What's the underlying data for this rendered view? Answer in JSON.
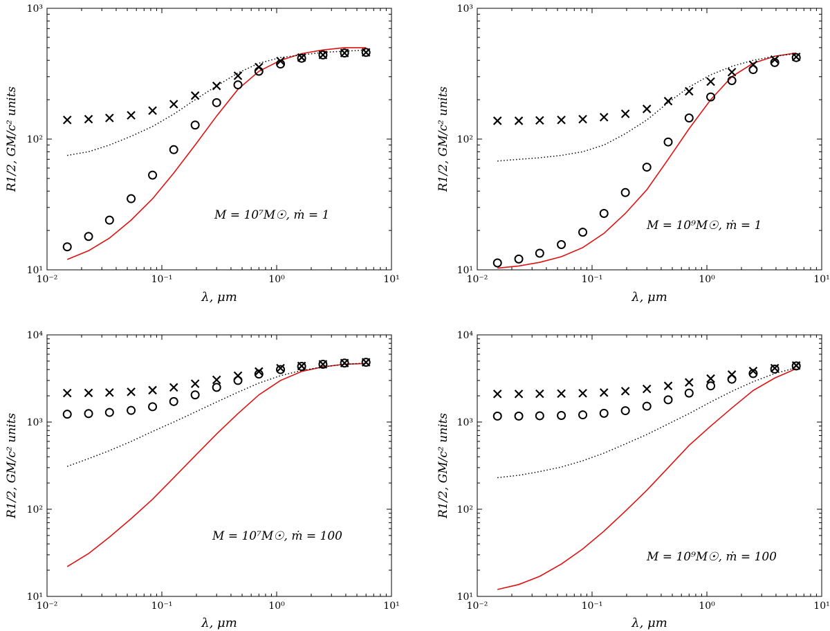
{
  "figure": {
    "colors": {
      "model_solid": "#e01010",
      "model_dotted": "#000000",
      "marker_cross": "#000000",
      "marker_circle": "#000000"
    },
    "panel_label_texts": {
      "xlabel": "λ, μm",
      "ylabel": "R1/2, GM/c² units",
      "annot_7_1": "M = 10⁷M☉, ṁ = 1",
      "annot_9_1": "M = 10⁹M☉, ṁ = 1",
      "annot_7_100": "M = 10⁷M☉, ṁ = 100",
      "annot_9_100": "M = 10⁹M☉, ṁ = 100"
    }
  },
  "chart_data": [
    {
      "type": "line",
      "annotation": "M = 10⁷M☉, ṁ = 1",
      "xlabel": "λ, μm",
      "ylabel": "R1/2, GM/c² units",
      "xscale": "log",
      "yscale": "log",
      "xlim": [
        0.01,
        10
      ],
      "ylim": [
        10,
        1000
      ],
      "xticks": [
        "10⁻²",
        "10⁻¹",
        "10⁰",
        "10¹"
      ],
      "yticks": [
        "10¹",
        "10²",
        "10³"
      ],
      "x": [
        0.015,
        0.023,
        0.035,
        0.054,
        0.083,
        0.127,
        0.195,
        0.3,
        0.46,
        0.7,
        1.08,
        1.65,
        2.53,
        3.9,
        6.0
      ],
      "series": [
        {
          "style": "solid-red",
          "values": [
            12,
            14,
            17.5,
            24,
            35,
            55,
            90,
            150,
            240,
            330,
            400,
            450,
            480,
            500,
            500
          ]
        },
        {
          "style": "dotted-black",
          "values": [
            75,
            80,
            90,
            105,
            125,
            155,
            200,
            255,
            320,
            380,
            420,
            440,
            460,
            470,
            480
          ]
        },
        {
          "style": "cross-marker",
          "values": [
            140,
            142,
            145,
            152,
            165,
            185,
            215,
            255,
            305,
            355,
            395,
            420,
            440,
            455,
            460
          ]
        },
        {
          "style": "circle-marker",
          "values": [
            15,
            18,
            24,
            35,
            53,
            83,
            128,
            190,
            260,
            330,
            375,
            415,
            440,
            455,
            460
          ]
        }
      ]
    },
    {
      "type": "line",
      "annotation": "M = 10⁹M☉, ṁ = 1",
      "xlabel": "λ, μm",
      "ylabel": "R1/2, GM/c² units",
      "xscale": "log",
      "yscale": "log",
      "xlim": [
        0.01,
        10
      ],
      "ylim": [
        10,
        1000
      ],
      "xticks": [
        "10⁻²",
        "10⁻¹",
        "10⁰",
        "10¹"
      ],
      "yticks": [
        "10¹",
        "10²",
        "10³"
      ],
      "x": [
        0.015,
        0.023,
        0.035,
        0.054,
        0.083,
        0.127,
        0.195,
        0.3,
        0.46,
        0.7,
        1.08,
        1.65,
        2.53,
        3.9,
        6.0
      ],
      "series": [
        {
          "style": "solid-red",
          "values": [
            10.3,
            10.7,
            11.4,
            12.6,
            14.8,
            19,
            27,
            41,
            70,
            120,
            200,
            300,
            380,
            430,
            455
          ]
        },
        {
          "style": "dotted-black",
          "values": [
            68,
            70,
            72,
            75,
            80,
            90,
            110,
            140,
            190,
            250,
            310,
            360,
            400,
            430,
            450
          ]
        },
        {
          "style": "cross-marker",
          "values": [
            138,
            138,
            139,
            140,
            142,
            147,
            156,
            170,
            195,
            232,
            275,
            325,
            370,
            405,
            425
          ]
        },
        {
          "style": "circle-marker",
          "values": [
            11.3,
            12.1,
            13.4,
            15.6,
            19.4,
            27,
            39,
            61,
            95,
            145,
            210,
            280,
            340,
            385,
            420
          ]
        }
      ]
    },
    {
      "type": "line",
      "annotation": "M = 10⁷M☉, ṁ = 100",
      "xlabel": "λ, μm",
      "ylabel": "R1/2, GM/c² units",
      "xscale": "log",
      "yscale": "log",
      "xlim": [
        0.01,
        10
      ],
      "ylim": [
        10,
        10000
      ],
      "xticks": [
        "10⁻²",
        "10⁻¹",
        "10⁰",
        "10¹"
      ],
      "yticks": [
        "10¹",
        "10²",
        "10³",
        "10⁴"
      ],
      "x": [
        0.015,
        0.023,
        0.035,
        0.054,
        0.083,
        0.127,
        0.195,
        0.3,
        0.46,
        0.7,
        1.08,
        1.65,
        2.53,
        3.9,
        6.0
      ],
      "series": [
        {
          "style": "solid-red",
          "values": [
            22,
            31,
            48,
            78,
            130,
            230,
            410,
            730,
            1250,
            2050,
            3000,
            3800,
            4300,
            4600,
            4700
          ]
        },
        {
          "style": "dotted-black",
          "values": [
            310,
            380,
            470,
            600,
            780,
            1000,
            1300,
            1700,
            2200,
            2800,
            3400,
            3900,
            4300,
            4600,
            4750
          ]
        },
        {
          "style": "cross-marker",
          "values": [
            2150,
            2160,
            2180,
            2220,
            2320,
            2500,
            2750,
            3050,
            3400,
            3800,
            4150,
            4400,
            4600,
            4750,
            4850
          ]
        },
        {
          "style": "circle-marker",
          "values": [
            1230,
            1250,
            1290,
            1360,
            1500,
            1720,
            2050,
            2500,
            3000,
            3550,
            4000,
            4350,
            4600,
            4750,
            4850
          ]
        }
      ]
    },
    {
      "type": "line",
      "annotation": "M = 10⁹M☉, ṁ = 100",
      "xlabel": "λ, μm",
      "ylabel": "R1/2, GM/c² units",
      "xscale": "log",
      "yscale": "log",
      "xlim": [
        0.01,
        10
      ],
      "ylim": [
        10,
        10000
      ],
      "xticks": [
        "10⁻²",
        "10⁻¹",
        "10⁰",
        "10¹"
      ],
      "yticks": [
        "10¹",
        "10²",
        "10³",
        "10⁴"
      ],
      "x": [
        0.015,
        0.023,
        0.035,
        0.054,
        0.083,
        0.127,
        0.195,
        0.3,
        0.46,
        0.7,
        1.08,
        1.65,
        2.53,
        3.9,
        6.0
      ],
      "series": [
        {
          "style": "solid-red",
          "values": [
            12,
            13.7,
            17,
            23.5,
            35,
            56,
            95,
            165,
            300,
            540,
            900,
            1450,
            2300,
            3200,
            4100
          ]
        },
        {
          "style": "dotted-black",
          "values": [
            230,
            245,
            270,
            305,
            360,
            440,
            560,
            720,
            950,
            1250,
            1700,
            2250,
            2900,
            3600,
            4200
          ]
        },
        {
          "style": "cross-marker",
          "values": [
            2100,
            2100,
            2110,
            2120,
            2140,
            2180,
            2260,
            2400,
            2600,
            2850,
            3150,
            3500,
            3850,
            4150,
            4450
          ]
        },
        {
          "style": "circle-marker",
          "values": [
            1170,
            1170,
            1180,
            1190,
            1210,
            1260,
            1350,
            1520,
            1800,
            2150,
            2600,
            3100,
            3600,
            4050,
            4400
          ]
        }
      ]
    }
  ]
}
